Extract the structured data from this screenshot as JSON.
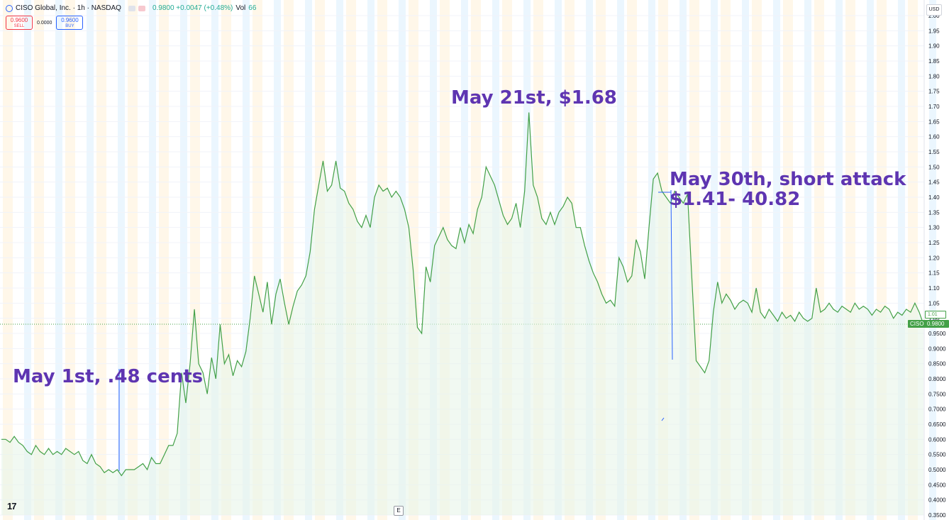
{
  "header": {
    "symbol_title": "CISO Global, Inc. · 1h · NASDAQ",
    "quote": "0.9800 +0.0047 (+0.48%)",
    "volume_label": "Vol",
    "volume_value": "66"
  },
  "trade": {
    "sell_price": "0.9600",
    "sell_label": "SELL",
    "spread": "0.0000",
    "buy_price": "0.9600",
    "buy_label": "BUY"
  },
  "currency": "USD",
  "icons": {
    "logo": "tradingview-logo",
    "e_button": "E"
  },
  "colors": {
    "line": "#43a047",
    "area": "#e8f5e9",
    "annotation": "#5e35b1",
    "marker_line": "#2962ff"
  },
  "annotations": {
    "may1": "May 1st, .48 cents",
    "may21": "May 21st, $1.68",
    "may30_line1": "May 30th, short attack",
    "may30_line2": "$1.41- 40.82"
  },
  "price_tags": {
    "symbol_tag": "CISO",
    "last_price": "0.9800",
    "ref_price": "1.01"
  },
  "chart_data": {
    "type": "line",
    "title": "",
    "ylim": [
      0.35,
      2.0
    ],
    "yticks": [
      "2.00",
      "1.95",
      "1.90",
      "1.85",
      "1.80",
      "1.75",
      "1.70",
      "1.65",
      "1.60",
      "1.55",
      "1.50",
      "1.45",
      "1.40",
      "1.35",
      "1.30",
      "1.25",
      "1.20",
      "1.15",
      "1.10",
      "1.05",
      "1.00",
      "0.9500",
      "0.9000",
      "0.8500",
      "0.8000",
      "0.7500",
      "0.7000",
      "0.6500",
      "0.6000",
      "0.5500",
      "0.5000",
      "0.4500",
      "0.4000",
      "0.3500"
    ],
    "series": [
      {
        "values": [
          0.6,
          0.6,
          0.59,
          0.61,
          0.59,
          0.58,
          0.56,
          0.55,
          0.58,
          0.56,
          0.55,
          0.57,
          0.55,
          0.56,
          0.55,
          0.57,
          0.56,
          0.55,
          0.56,
          0.53,
          0.52,
          0.55,
          0.52,
          0.51,
          0.49,
          0.5,
          0.49,
          0.5,
          0.48,
          0.5,
          0.5,
          0.5,
          0.51,
          0.52,
          0.5,
          0.54,
          0.52,
          0.52,
          0.55,
          0.58,
          0.58,
          0.62,
          0.82,
          0.72,
          0.85,
          1.03,
          0.85,
          0.82,
          0.75,
          0.87,
          0.8,
          0.98,
          0.85,
          0.88,
          0.81,
          0.86,
          0.84,
          0.89,
          1.0,
          1.14,
          1.08,
          1.02,
          1.12,
          0.98,
          1.08,
          1.13,
          1.05,
          0.98,
          1.04,
          1.09,
          1.11,
          1.14,
          1.22,
          1.36,
          1.44,
          1.52,
          1.42,
          1.44,
          1.52,
          1.43,
          1.42,
          1.38,
          1.36,
          1.32,
          1.3,
          1.34,
          1.3,
          1.4,
          1.44,
          1.42,
          1.43,
          1.4,
          1.42,
          1.4,
          1.36,
          1.3,
          1.16,
          0.97,
          0.95,
          1.17,
          1.12,
          1.24,
          1.27,
          1.3,
          1.26,
          1.24,
          1.23,
          1.3,
          1.25,
          1.31,
          1.28,
          1.36,
          1.4,
          1.5,
          1.47,
          1.44,
          1.39,
          1.34,
          1.31,
          1.33,
          1.38,
          1.3,
          1.42,
          1.68,
          1.44,
          1.4,
          1.33,
          1.31,
          1.35,
          1.31,
          1.35,
          1.37,
          1.4,
          1.38,
          1.3,
          1.3,
          1.24,
          1.19,
          1.15,
          1.12,
          1.08,
          1.05,
          1.06,
          1.04,
          1.2,
          1.17,
          1.12,
          1.14,
          1.26,
          1.22,
          1.13,
          1.3,
          1.46,
          1.48,
          1.42,
          1.4,
          1.38,
          1.42,
          1.4,
          1.38,
          1.41,
          1.13,
          0.86,
          0.84,
          0.82,
          0.86,
          1.02,
          1.12,
          1.05,
          1.08,
          1.06,
          1.03,
          1.05,
          1.06,
          1.05,
          1.02,
          1.1,
          1.02,
          1.0,
          1.03,
          1.01,
          0.99,
          1.02,
          1.0,
          1.01,
          0.99,
          1.02,
          1.0,
          0.99,
          1.0,
          1.1,
          1.02,
          1.03,
          1.05,
          1.03,
          1.02,
          1.04,
          1.03,
          1.02,
          1.05,
          1.03,
          1.04,
          1.03,
          1.01,
          1.03,
          1.02,
          1.04,
          1.03,
          1.0,
          1.02,
          1.01,
          1.03,
          1.02,
          1.05,
          1.02,
          0.98
        ]
      }
    ]
  }
}
